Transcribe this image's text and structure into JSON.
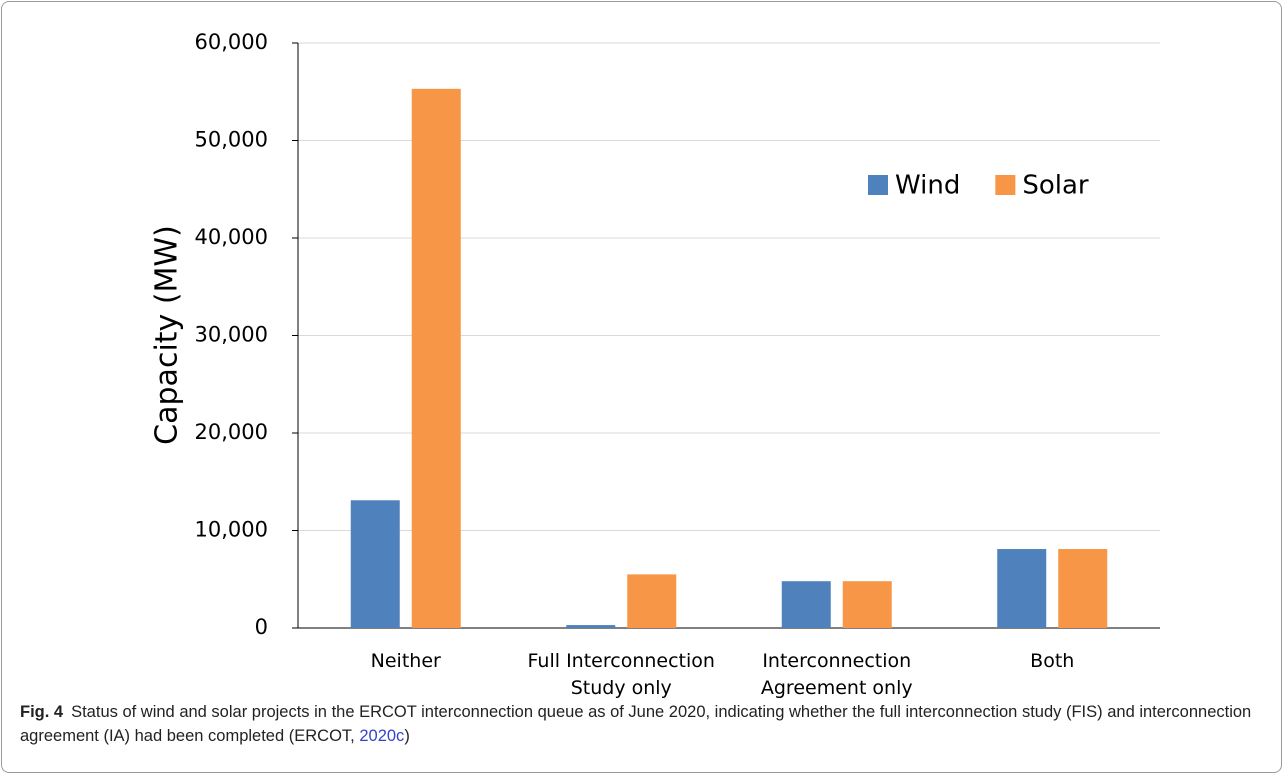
{
  "chart_data": {
    "type": "bar",
    "y_label": "Capacity (MW)",
    "categories": [
      "Neither",
      "Full Interconnection Study only",
      "Interconnection Agreement only",
      "Both"
    ],
    "series": [
      {
        "name": "Wind",
        "color": "#4f81bd",
        "values": [
          13100,
          300,
          4800,
          8100
        ]
      },
      {
        "name": "Solar",
        "color": "#f79646",
        "values": [
          55300,
          5500,
          4800,
          8100
        ]
      }
    ],
    "ylim": [
      0,
      60000
    ],
    "yticks": [
      0,
      {
        "value": 10000,
        "label": "10,000"
      },
      {
        "value": 20000,
        "label": "20,000"
      },
      {
        "value": 30000,
        "label": "30,000"
      },
      {
        "value": 40000,
        "label": "40,000"
      },
      {
        "value": 50000,
        "label": "50,000"
      },
      {
        "value": 60000,
        "label": "60,000"
      }
    ],
    "grid": true,
    "legend": "upper right"
  },
  "caption": {
    "label": "Fig. 4",
    "text": "Status of wind and solar projects in the ERCOT interconnection queue as of June 2020, indicating whether the full interconnection study (FIS) and interconnection agreement (IA) had been completed (ERCOT, ",
    "link": "2020c",
    "end": ")"
  }
}
